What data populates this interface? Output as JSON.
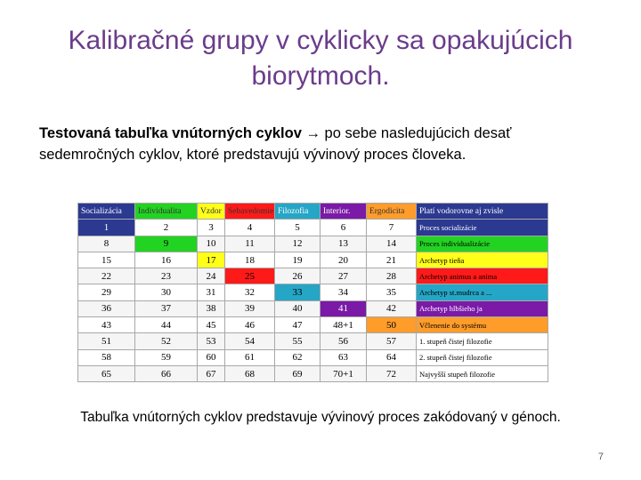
{
  "slide": {
    "title": "Kalibračné grupy v cyklicky sa opakujúcich biorytmoch.",
    "intro_bold": "Testovaná tabuľka vnútorných cyklov",
    "intro_rest": " → po sebe nasledujúcich desať sedemročných cyklov, ktoré predstavujú vývinový proces človeka.",
    "caption": "Tabuľka vnútorných cyklov predstavuje vývinový proces zakódovaný v génoch.",
    "page_number": "7"
  },
  "table": {
    "headers": [
      "Socializácia",
      "Individualita",
      "Vzdor",
      "Sebavedomie",
      "Filozofia",
      "Interior.",
      "Ergodicita",
      "Platí vodorovne aj zvisle"
    ],
    "rows": [
      {
        "cells": [
          "1",
          "2",
          "3",
          "4",
          "5",
          "6",
          "7"
        ],
        "legend": "Proces socializácie"
      },
      {
        "cells": [
          "8",
          "9",
          "10",
          "11",
          "12",
          "13",
          "14"
        ],
        "legend": "Proces individualizácie"
      },
      {
        "cells": [
          "15",
          "16",
          "17",
          "18",
          "19",
          "20",
          "21"
        ],
        "legend": "Archetyp tieňa"
      },
      {
        "cells": [
          "22",
          "23",
          "24",
          "25",
          "26",
          "27",
          "28"
        ],
        "legend": "Archetyp animus a anima"
      },
      {
        "cells": [
          "29",
          "30",
          "31",
          "32",
          "33",
          "34",
          "35"
        ],
        "legend": "Archetyp st.mudrca a ..."
      },
      {
        "cells": [
          "36",
          "37",
          "38",
          "39",
          "40",
          "41",
          "42"
        ],
        "legend": "Archetyp hlbšieho ja"
      },
      {
        "cells": [
          "43",
          "44",
          "45",
          "46",
          "47",
          "48+1",
          "50"
        ],
        "legend": "Včlenenie do systému"
      },
      {
        "cells": [
          "51",
          "52",
          "53",
          "54",
          "55",
          "56",
          "57"
        ],
        "legend": "1. stupeň čistej filozofie"
      },
      {
        "cells": [
          "58",
          "59",
          "60",
          "61",
          "62",
          "63",
          "64"
        ],
        "legend": "2. stupeň čistej filozofie"
      },
      {
        "cells": [
          "65",
          "66",
          "67",
          "68",
          "69",
          "70+1",
          "72"
        ],
        "legend": "Najvyšší stupeň filozofie"
      }
    ],
    "colors": {
      "blue": "#2b3991",
      "green": "#22d322",
      "yellow": "#ffff1a",
      "red": "#ff1a1a",
      "teal": "#25a6c6",
      "purple": "#7a1aa6",
      "orange": "#ff9c2a",
      "title": "#6a3c8c"
    }
  }
}
